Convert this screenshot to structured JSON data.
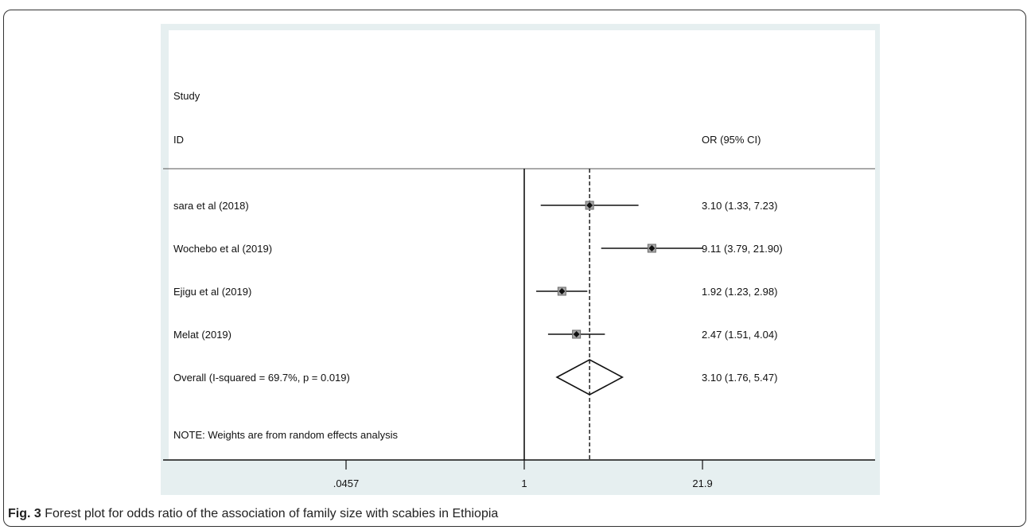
{
  "header": {
    "study": "Study",
    "id": "ID",
    "estimate": "OR (95% CI)"
  },
  "note": "NOTE: Weights are from random effects analysis",
  "caption": {
    "label": "Fig. 3",
    "text": "Forest plot for odds ratio of the association of family size with scabies in Ethiopia"
  },
  "colors": {
    "panel": "#e6eff0",
    "plot_bg": "#ffffff",
    "line": "#111111",
    "box": "#a8a8a8"
  },
  "chart_data": {
    "type": "forest",
    "x_scale": "log",
    "null_value": 1,
    "overall_line": 3.1,
    "x_ticks": [
      ".0457",
      "1",
      "21.9"
    ],
    "x_tick_values": [
      0.0457,
      1,
      21.9
    ],
    "xlim": [
      0.0457,
      100
    ],
    "studies": [
      {
        "label": "sara et al  (2018)",
        "or": 3.1,
        "lo": 1.33,
        "hi": 7.23,
        "text": "3.10 (1.33, 7.23)"
      },
      {
        "label": "Wochebo et al (2019)",
        "or": 9.11,
        "lo": 3.79,
        "hi": 21.9,
        "text": "9.11 (3.79, 21.90)"
      },
      {
        "label": "Ejigu et al (2019)",
        "or": 1.92,
        "lo": 1.23,
        "hi": 2.98,
        "text": "1.92 (1.23, 2.98)"
      },
      {
        "label": "Melat  (2019)",
        "or": 2.47,
        "lo": 1.51,
        "hi": 4.04,
        "text": "2.47 (1.51, 4.04)"
      }
    ],
    "overall": {
      "label": "Overall  (I-squared = 69.7%, p = 0.019)",
      "or": 3.1,
      "lo": 1.76,
      "hi": 5.47,
      "text": "3.10 (1.76, 5.47)"
    }
  }
}
